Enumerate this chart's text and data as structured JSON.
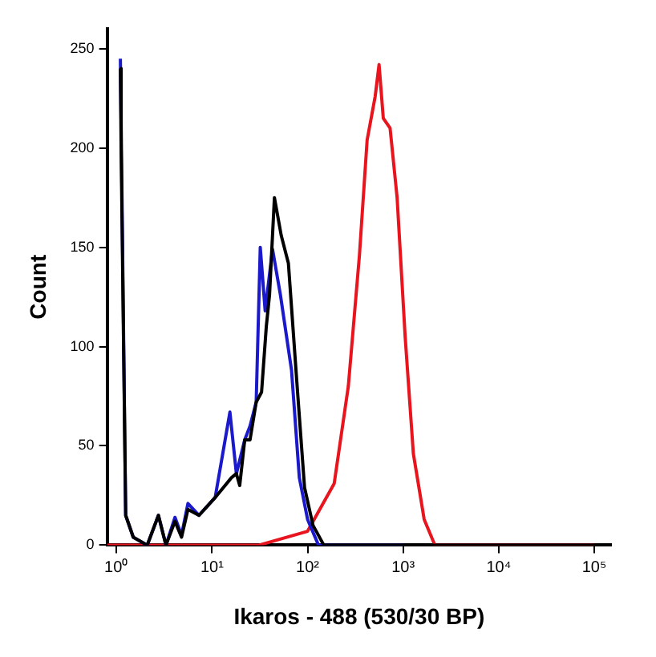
{
  "chart_data": {
    "type": "line",
    "xlabel": "Ikaros - 488 (530/30 BP)",
    "ylabel": "Count",
    "log": "x",
    "grid": false,
    "legend": false,
    "marker": "none",
    "line_style": "solid",
    "xlim": [
      0.8,
      150000
    ],
    "xticks": [
      {
        "value": 1,
        "label": "10⁰"
      },
      {
        "value": 10,
        "label": "10¹"
      },
      {
        "value": 100,
        "label": "10²"
      },
      {
        "value": 1000,
        "label": "10³"
      },
      {
        "value": 10000,
        "label": "10⁴"
      },
      {
        "value": 100000,
        "label": "10⁵"
      }
    ],
    "ylim": [
      0,
      260
    ],
    "yticks": [
      0,
      50,
      100,
      150,
      200,
      250
    ],
    "series": [
      {
        "color": "#000000",
        "x": [
          1.1,
          1.12,
          1.25,
          1.5,
          2.1,
          2.75,
          3.3,
          4.1,
          4.8,
          5.6,
          7.3,
          10.8,
          16,
          18,
          19.5,
          22,
          25,
          29,
          33,
          37,
          40,
          45,
          53,
          63,
          77,
          93,
          114,
          148,
          1000,
          100000
        ],
        "values": [
          240,
          200,
          15,
          4,
          0,
          15,
          0,
          12,
          4,
          18,
          15,
          24,
          34,
          36,
          30,
          53,
          53,
          72,
          77,
          110,
          126,
          175,
          156,
          142,
          83,
          29,
          10,
          0,
          0,
          0
        ]
      },
      {
        "color": "#1a1acc",
        "x": [
          1.1,
          1.25,
          1.5,
          2.1,
          2.75,
          3.3,
          4.1,
          4.8,
          5.6,
          7.3,
          10.8,
          15.4,
          18,
          22,
          25,
          29,
          32,
          36,
          43,
          52,
          68,
          82,
          100,
          130,
          1000
        ],
        "values": [
          245,
          15,
          4,
          0,
          15,
          0,
          14,
          5,
          21,
          15,
          24,
          67,
          36,
          53,
          60,
          72,
          150,
          118,
          149,
          126,
          88,
          34,
          13,
          0,
          0
        ]
      },
      {
        "color": "#e8141e",
        "x": [
          0.8,
          31,
          100,
          190,
          267,
          349,
          420,
          510,
          560,
          620,
          730,
          865,
          1050,
          1280,
          1660,
          2150,
          100000
        ],
        "values": [
          0,
          0,
          7,
          31,
          80,
          146,
          204,
          226,
          242,
          215,
          210,
          175,
          105,
          46,
          13,
          0,
          0
        ]
      }
    ]
  }
}
